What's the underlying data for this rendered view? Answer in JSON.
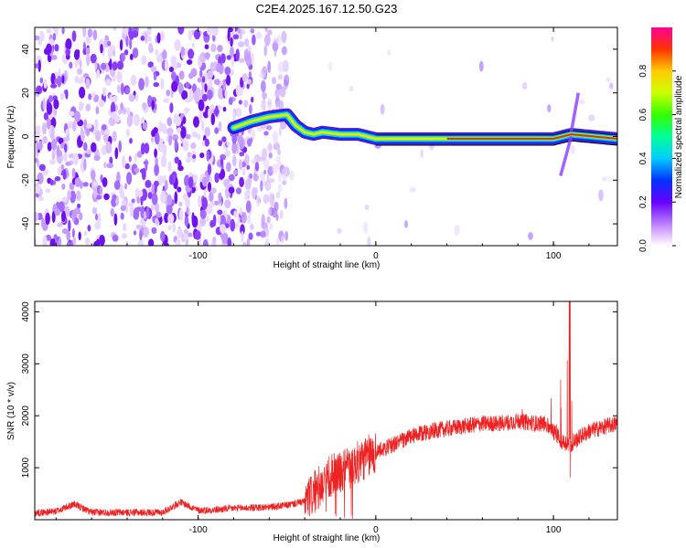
{
  "title": "C2E4.2025.167.12.50.G23",
  "chart_data": [
    {
      "type": "heatmap",
      "xlabel": "Height of straight line (km)",
      "ylabel": "Frequency (Hz)",
      "xlim": [
        -192,
        136
      ],
      "ylim": [
        -50,
        50
      ],
      "x_ticks": [
        -100,
        0,
        100
      ],
      "y_ticks": [
        -40,
        -20,
        0,
        20,
        40
      ],
      "colorbar": {
        "label": "Normalized spectral amplitude",
        "range": [
          0.0,
          1.0
        ],
        "ticks": [
          0.0,
          0.2,
          0.4,
          0.6,
          0.8
        ]
      },
      "ridge": {
        "x": [
          -80,
          -70,
          -60,
          -50,
          -45,
          -40,
          -35,
          -30,
          -20,
          -10,
          0,
          20,
          40,
          60,
          80,
          100,
          105,
          110,
          136
        ],
        "y": [
          4,
          7,
          9,
          10,
          5,
          2,
          1,
          2,
          1,
          1,
          -1,
          -1,
          -1,
          -1,
          -1,
          -1,
          0,
          1,
          -1
        ]
      }
    },
    {
      "type": "line",
      "xlabel": "Height of straight line (km)",
      "ylabel": "SNR (10 * v/v)",
      "xlim": [
        -192,
        136
      ],
      "ylim": [
        0,
        4200
      ],
      "x_ticks": [
        -100,
        0,
        100
      ],
      "y_ticks": [
        1000,
        2000,
        3000,
        4000
      ],
      "color": "#ee2222",
      "envelope": {
        "x": [
          -192,
          -180,
          -170,
          -160,
          -150,
          -140,
          -130,
          -120,
          -110,
          -100,
          -90,
          -80,
          -70,
          -60,
          -50,
          -40,
          -35,
          -30,
          -25,
          -20,
          -15,
          -10,
          -5,
          0,
          10,
          20,
          30,
          40,
          50,
          60,
          70,
          80,
          90,
          95,
          100,
          105,
          110,
          115,
          120,
          130,
          136
        ],
        "y": [
          130,
          160,
          300,
          140,
          140,
          140,
          140,
          140,
          340,
          180,
          190,
          220,
          230,
          240,
          280,
          350,
          500,
          700,
          850,
          900,
          1000,
          1100,
          1200,
          1300,
          1450,
          1600,
          1700,
          1750,
          1800,
          1850,
          1850,
          1900,
          1850,
          1850,
          1700,
          1500,
          1450,
          1600,
          1700,
          1800,
          1850
        ]
      }
    }
  ]
}
